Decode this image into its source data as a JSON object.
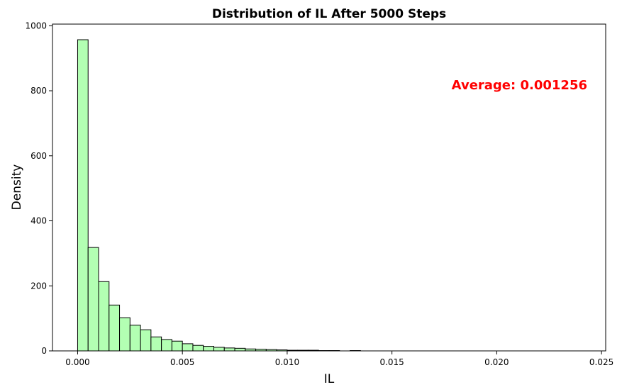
{
  "chart_data": {
    "type": "bar",
    "title": "Distribution of IL After 5000 Steps",
    "xlabel": "IL",
    "ylabel": "Density",
    "xlim": [
      -0.0012,
      0.0252
    ],
    "ylim": [
      0,
      1005
    ],
    "xticks": [
      0.0,
      0.005,
      0.01,
      0.015,
      0.02,
      0.025
    ],
    "xtick_labels": [
      "0.000",
      "0.005",
      "0.010",
      "0.015",
      "0.020",
      "0.025"
    ],
    "yticks": [
      0,
      200,
      400,
      600,
      800,
      1000
    ],
    "ytick_labels": [
      "0",
      "200",
      "400",
      "600",
      "800",
      "1000"
    ],
    "grid": false,
    "bin_start": 0.0,
    "bin_width": 0.0005,
    "bar_color": "#b3ffb3",
    "edge_color": "#000000",
    "values": [
      957,
      318,
      213,
      141,
      102,
      79,
      65,
      43,
      35,
      30,
      22,
      17,
      14,
      11,
      9,
      8,
      6,
      5,
      4,
      3,
      2,
      2,
      2,
      1,
      1,
      0,
      1,
      0,
      0,
      0,
      0,
      0,
      0,
      0,
      0,
      0,
      0,
      0,
      0,
      0,
      0,
      0,
      0,
      0,
      0,
      0,
      0,
      0
    ],
    "annotation": {
      "text": "Average: 0.001256",
      "color": "#ff0000"
    }
  }
}
